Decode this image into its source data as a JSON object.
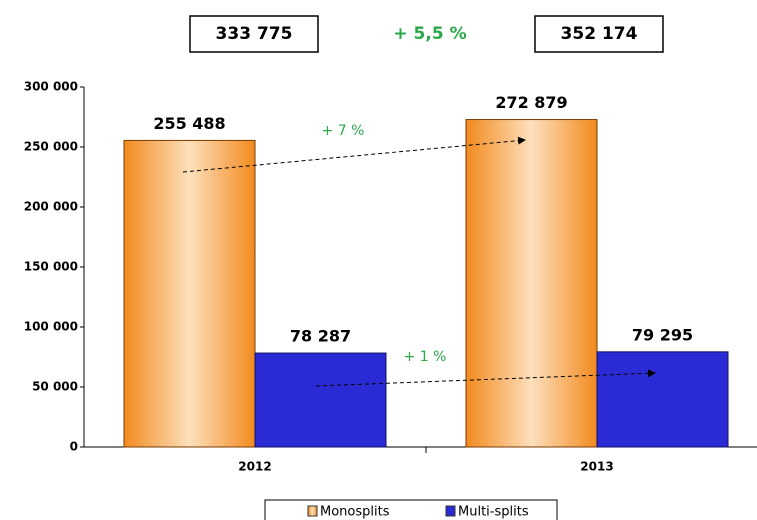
{
  "chart_data": {
    "type": "bar",
    "categories": [
      "2012",
      "2013"
    ],
    "series": [
      {
        "name": "Monosplits",
        "color": "#f7a24a",
        "values": [
          255488,
          272879
        ],
        "value_labels": [
          "255 488",
          "272 879"
        ]
      },
      {
        "name": "Multi-splits",
        "color": "#2b2bd6",
        "values": [
          78287,
          79295
        ],
        "value_labels": [
          "78 287",
          "79 295"
        ]
      }
    ],
    "totals": {
      "values": [
        333775,
        352174
      ],
      "value_labels": [
        "333 775",
        "352 174"
      ]
    },
    "annotations": {
      "total_growth": "+ 5,5 %",
      "series_growth": [
        "+ 7 %",
        "+ 1 %"
      ]
    },
    "ylim": [
      0,
      300000
    ],
    "yticks": [
      0,
      {
        "value": 50000,
        "label": "50 000"
      },
      {
        "value": 100000,
        "label": "100 000"
      },
      {
        "value": 150000,
        "label": "150 000"
      },
      {
        "value": 200000,
        "label": "200 000"
      },
      {
        "value": 250000,
        "label": "250 000"
      },
      {
        "value": 300000,
        "label": "300 000"
      }
    ],
    "legend": "bottom"
  }
}
